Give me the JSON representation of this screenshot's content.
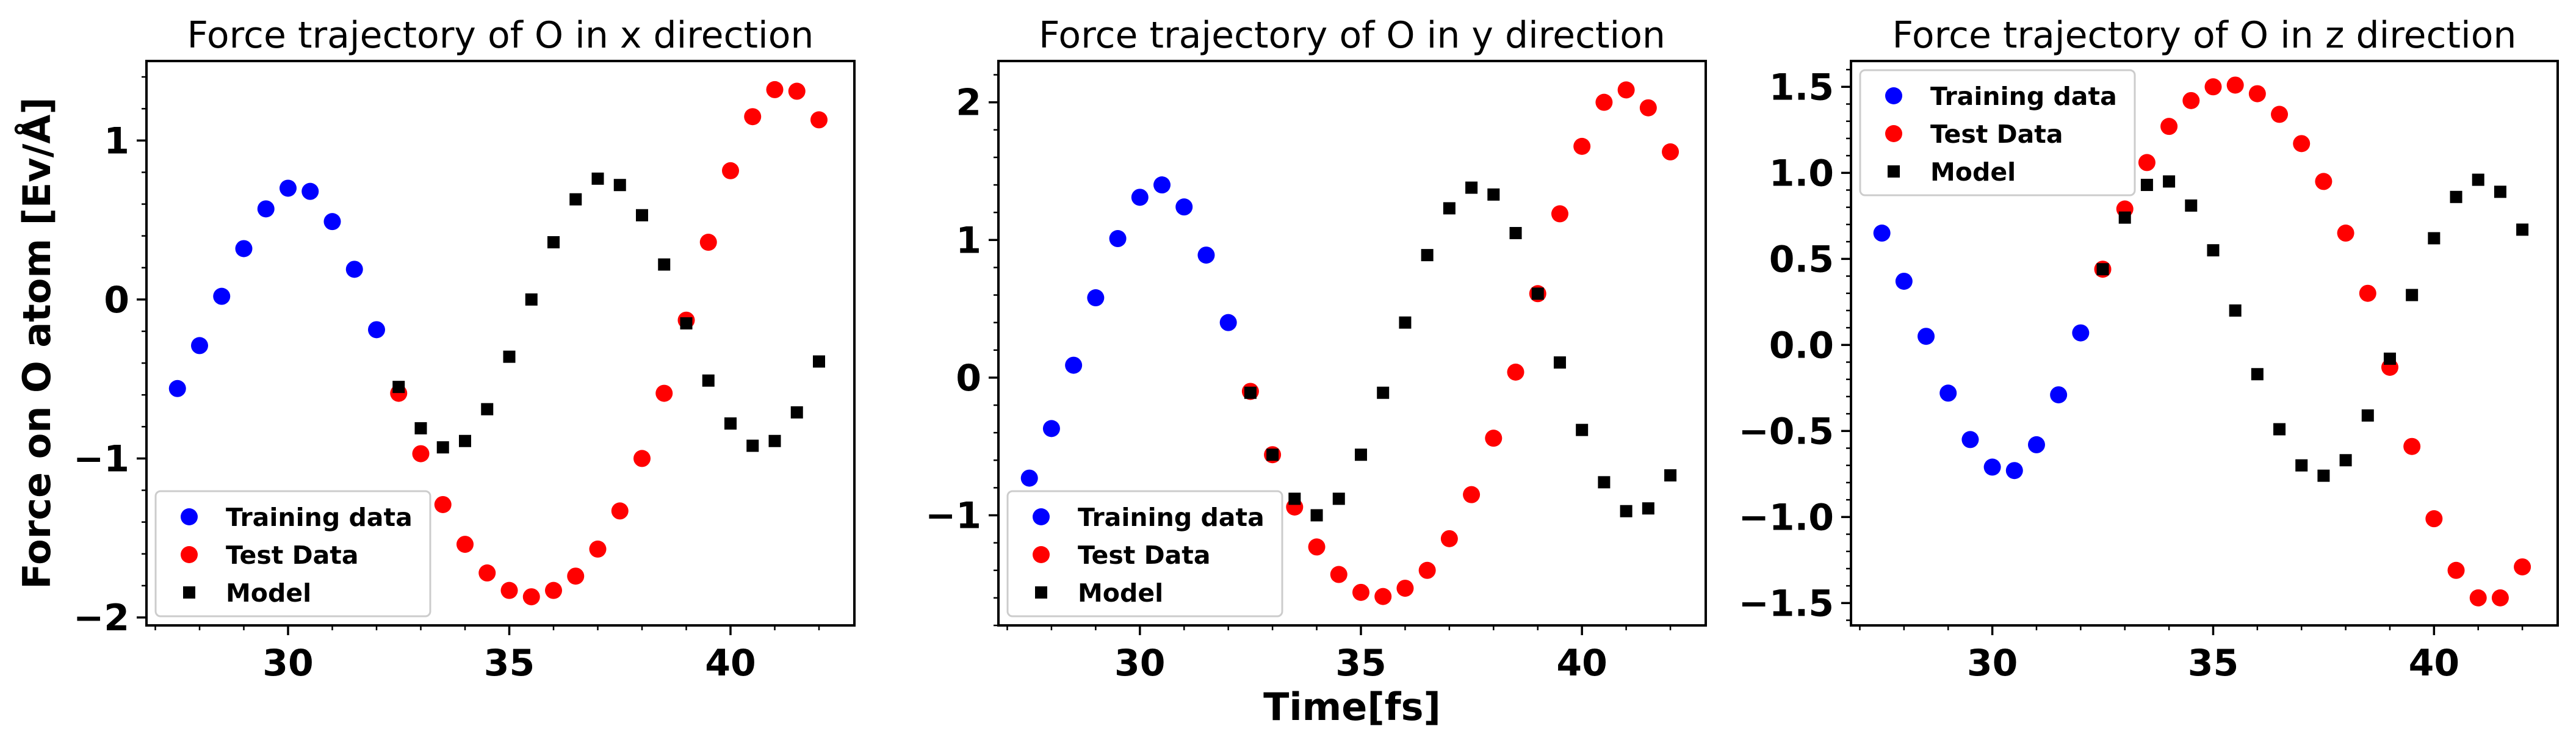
{
  "chart_data": [
    {
      "type": "scatter",
      "title": "Force trajectory of O in x direction",
      "ylabel": "Force on O atom [Ev/Å]",
      "xlabel": "",
      "xlim": [
        26.8,
        42.8
      ],
      "ylim": [
        -2.05,
        1.5
      ],
      "xticks": [
        30,
        35,
        40
      ],
      "xtick_labels": [
        "30",
        "35",
        "40"
      ],
      "yticks": [
        -2,
        -1,
        0,
        1
      ],
      "ytick_labels": [
        "−2",
        "−1",
        "0",
        "1"
      ],
      "legend_position": "lower-left",
      "series": [
        {
          "name": "Training data",
          "marker": "circle",
          "color": "#0000ff",
          "x": [
            27.5,
            28,
            28.5,
            29,
            29.5,
            30,
            30.5,
            31,
            31.5,
            32
          ],
          "y": [
            -0.56,
            -0.29,
            0.02,
            0.32,
            0.57,
            0.7,
            0.68,
            0.49,
            0.19,
            -0.19
          ]
        },
        {
          "name": "Test Data",
          "marker": "circle",
          "color": "#ff0000",
          "x": [
            32.5,
            33,
            33.5,
            34,
            34.5,
            35,
            35.5,
            36,
            36.5,
            37,
            37.5,
            38,
            38.5,
            39,
            39.5,
            40,
            40.5,
            41,
            41.5,
            42
          ],
          "y": [
            -0.59,
            -0.97,
            -1.29,
            -1.54,
            -1.72,
            -1.83,
            -1.87,
            -1.83,
            -1.74,
            -1.57,
            -1.33,
            -1.0,
            -0.59,
            -0.13,
            0.36,
            0.81,
            1.15,
            1.32,
            1.31,
            1.13
          ]
        },
        {
          "name": "Model",
          "marker": "square",
          "color": "#000000",
          "x": [
            32.5,
            33,
            33.5,
            34,
            34.5,
            35,
            35.5,
            36,
            36.5,
            37,
            37.5,
            38,
            38.5,
            39,
            39.5,
            40,
            40.5,
            41,
            41.5,
            42
          ],
          "y": [
            -0.55,
            -0.81,
            -0.93,
            -0.89,
            -0.69,
            -0.36,
            0.0,
            0.36,
            0.63,
            0.76,
            0.72,
            0.53,
            0.22,
            -0.15,
            -0.51,
            -0.78,
            -0.92,
            -0.89,
            -0.71,
            -0.39
          ]
        }
      ]
    },
    {
      "type": "scatter",
      "title": "Force trajectory of O in y direction",
      "ylabel": "",
      "xlabel": "Time[fs]",
      "xlim": [
        26.8,
        42.8
      ],
      "ylim": [
        -1.8,
        2.3
      ],
      "xticks": [
        30,
        35,
        40
      ],
      "xtick_labels": [
        "30",
        "35",
        "40"
      ],
      "yticks": [
        -1,
        0,
        1,
        2
      ],
      "ytick_labels": [
        "−1",
        "0",
        "1",
        "2"
      ],
      "legend_position": "lower-left",
      "series": [
        {
          "name": "Training data",
          "marker": "circle",
          "color": "#0000ff",
          "x": [
            27.5,
            28,
            28.5,
            29,
            29.5,
            30,
            30.5,
            31,
            31.5,
            32
          ],
          "y": [
            -0.73,
            -0.37,
            0.09,
            0.58,
            1.01,
            1.31,
            1.4,
            1.24,
            0.89,
            0.4
          ]
        },
        {
          "name": "Test Data",
          "marker": "circle",
          "color": "#ff0000",
          "x": [
            32.5,
            33,
            33.5,
            34,
            34.5,
            35,
            35.5,
            36,
            36.5,
            37,
            37.5,
            38,
            38.5,
            39,
            39.5,
            40,
            40.5,
            41,
            41.5,
            42
          ],
          "y": [
            -0.1,
            -0.56,
            -0.94,
            -1.23,
            -1.43,
            -1.56,
            -1.59,
            -1.53,
            -1.4,
            -1.17,
            -0.85,
            -0.44,
            0.04,
            0.61,
            1.19,
            1.68,
            2.0,
            2.09,
            1.96,
            1.64
          ]
        },
        {
          "name": "Model",
          "marker": "square",
          "color": "#000000",
          "x": [
            32.5,
            33,
            33.5,
            34,
            34.5,
            35,
            35.5,
            36,
            36.5,
            37,
            37.5,
            38,
            38.5,
            39,
            39.5,
            40,
            40.5,
            41,
            41.5,
            42
          ],
          "y": [
            -0.11,
            -0.56,
            -0.88,
            -1.0,
            -0.88,
            -0.56,
            -0.11,
            0.4,
            0.89,
            1.23,
            1.38,
            1.33,
            1.05,
            0.61,
            0.11,
            -0.38,
            -0.76,
            -0.97,
            -0.95,
            -0.71
          ]
        }
      ]
    },
    {
      "type": "scatter",
      "title": "Force trajectory of O in z direction",
      "ylabel": "",
      "xlabel": "",
      "xlim": [
        26.8,
        42.8
      ],
      "ylim": [
        -1.63,
        1.65
      ],
      "xticks": [
        30,
        35,
        40
      ],
      "xtick_labels": [
        "30",
        "35",
        "40"
      ],
      "yticks": [
        -1.5,
        -1.0,
        -0.5,
        0.0,
        0.5,
        1.0,
        1.5
      ],
      "ytick_labels": [
        "−1.5",
        "−1.0",
        "−0.5",
        "0.0",
        "0.5",
        "1.0",
        "1.5"
      ],
      "legend_position": "upper-left",
      "series": [
        {
          "name": "Training data",
          "marker": "circle",
          "color": "#0000ff",
          "x": [
            27.5,
            28,
            28.5,
            29,
            29.5,
            30,
            30.5,
            31,
            31.5,
            32
          ],
          "y": [
            0.65,
            0.37,
            0.05,
            -0.28,
            -0.55,
            -0.71,
            -0.73,
            -0.58,
            -0.29,
            0.07
          ]
        },
        {
          "name": "Test Data",
          "marker": "circle",
          "color": "#ff0000",
          "x": [
            32.5,
            33,
            33.5,
            34,
            34.5,
            35,
            35.5,
            36,
            36.5,
            37,
            37.5,
            38,
            38.5,
            39,
            39.5,
            40,
            40.5,
            41,
            41.5,
            42
          ],
          "y": [
            0.44,
            0.79,
            1.06,
            1.27,
            1.42,
            1.5,
            1.51,
            1.46,
            1.34,
            1.17,
            0.95,
            0.65,
            0.3,
            -0.13,
            -0.59,
            -1.01,
            -1.31,
            -1.47,
            -1.47,
            -1.29
          ]
        },
        {
          "name": "Model",
          "marker": "square",
          "color": "#000000",
          "x": [
            32.5,
            33,
            33.5,
            34,
            34.5,
            35,
            35.5,
            36,
            36.5,
            37,
            37.5,
            38,
            38.5,
            39,
            39.5,
            40,
            40.5,
            41,
            41.5,
            42
          ],
          "y": [
            0.44,
            0.74,
            0.93,
            0.95,
            0.81,
            0.55,
            0.2,
            -0.17,
            -0.49,
            -0.7,
            -0.76,
            -0.67,
            -0.41,
            -0.08,
            0.29,
            0.62,
            0.86,
            0.96,
            0.89,
            0.67
          ]
        }
      ]
    }
  ]
}
